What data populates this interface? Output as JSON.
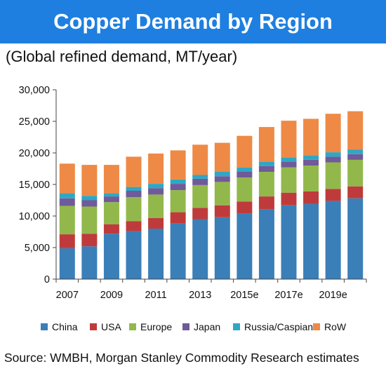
{
  "header": {
    "title": "Copper Demand by Region",
    "subtitle": "(Global refined demand, MT/year)"
  },
  "footer": {
    "source": "Source: WMBH, Morgan Stanley Commodity Research estimates"
  },
  "colors": {
    "banner": "#1e7fe0",
    "China": "#3a7fb8",
    "USA": "#bf3b3b",
    "Europe": "#92b84c",
    "Japan": "#715a99",
    "Russia/Caspian": "#2fa7c4",
    "RoW": "#ee8a46"
  },
  "chart_data": {
    "type": "bar",
    "stacked": true,
    "title": "Copper Demand by Region",
    "subtitle": "(Global refined demand, MT/year)",
    "xlabel": "",
    "ylabel": "",
    "ylim": [
      0,
      30000
    ],
    "yticks": [
      "0",
      "5,000",
      "10,000",
      "15,000",
      "20,000",
      "25,000",
      "30,000"
    ],
    "xtick_labels": [
      "2007",
      "2009",
      "2011",
      "2013",
      "2015e",
      "2017e",
      "2019e"
    ],
    "categories": [
      "2007",
      "2008",
      "2009",
      "2010",
      "2011",
      "2012",
      "2013",
      "2014",
      "2015e",
      "2016e",
      "2017e",
      "2018e",
      "2019e",
      "2020e"
    ],
    "legend_position": "bottom",
    "grid": false,
    "series": [
      {
        "name": "China",
        "values": [
          4900,
          5200,
          7200,
          7600,
          8000,
          8800,
          9500,
          9800,
          10400,
          11100,
          11700,
          11900,
          12400,
          12800
        ]
      },
      {
        "name": "USA",
        "values": [
          2200,
          2000,
          1500,
          1600,
          1700,
          1800,
          1800,
          1900,
          1900,
          2000,
          2000,
          2000,
          1900,
          1900
        ]
      },
      {
        "name": "Europe",
        "values": [
          4500,
          4300,
          3500,
          3800,
          3700,
          3500,
          3600,
          3700,
          3800,
          3900,
          4000,
          4100,
          4200,
          4200
        ]
      },
      {
        "name": "Japan",
        "values": [
          1200,
          1000,
          900,
          1000,
          1000,
          1000,
          1000,
          900,
          900,
          900,
          900,
          900,
          900,
          900
        ]
      },
      {
        "name": "Russia/Caspian",
        "values": [
          800,
          700,
          500,
          600,
          700,
          700,
          600,
          700,
          700,
          700,
          700,
          700,
          700,
          700
        ]
      },
      {
        "name": "RoW",
        "values": [
          4700,
          4900,
          4500,
          4800,
          4800,
          4600,
          4800,
          4600,
          5000,
          5500,
          5800,
          5800,
          6100,
          6100
        ]
      }
    ]
  }
}
